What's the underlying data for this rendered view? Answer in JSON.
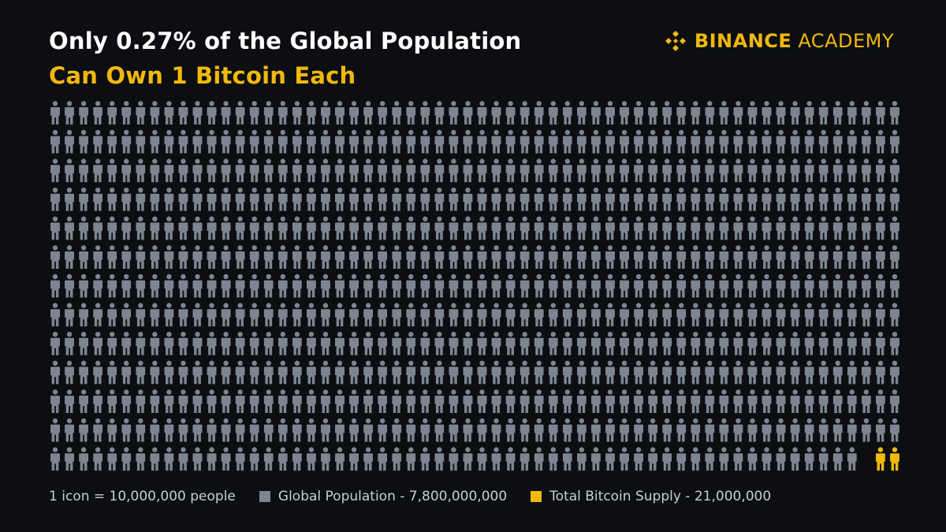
{
  "title": {
    "line1": "Only 0.27% of the Global Population",
    "line2": "Can Own 1 Bitcoin Each"
  },
  "brand": {
    "word1": "BINANCE",
    "word2": "ACADEMY",
    "logo_icon": "binance-diamond-logo-icon"
  },
  "colors": {
    "background": "#0c0e12",
    "population": "#7e8591",
    "bitcoin": "#f0b90b",
    "title": "#ffffff",
    "accent": "#f0b90b",
    "legend_text": "#c9ced6"
  },
  "legend": {
    "unit": "1 icon = 10,000,000 people",
    "population_label": "Global Population - 7,800,000,000",
    "bitcoin_label": "Total Bitcoin Supply - 21,000,000"
  },
  "chart_data": {
    "type": "pictograph",
    "icon_value": 10000000,
    "series": [
      {
        "name": "Global Population",
        "value": 7800000000,
        "icons": 780,
        "color": "#7e8591"
      },
      {
        "name": "Total Bitcoin Supply",
        "value": 21000000,
        "icons": 2.1,
        "color": "#f0b90b"
      }
    ],
    "grid": {
      "columns": 60,
      "rows": 13
    },
    "annotation": "Only 0.27% of the Global Population Can Own 1 Bitcoin Each"
  }
}
